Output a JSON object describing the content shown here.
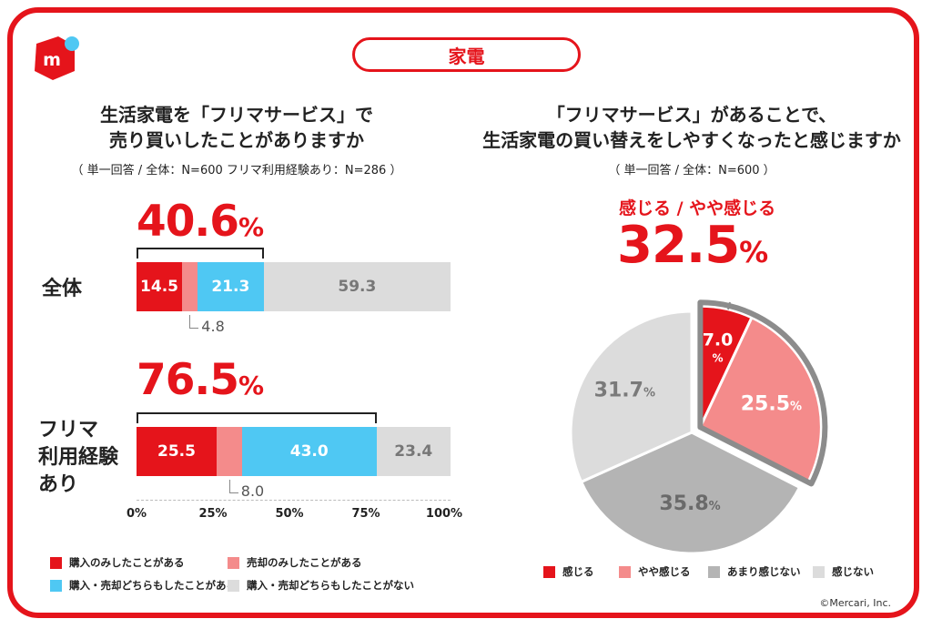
{
  "header": {
    "tag": "家電"
  },
  "left": {
    "title_line1": "生活家電を「フリマサービス」で",
    "title_line2": "売り買いしたことがありますか",
    "note": "（ 単一回答 / 全体：N=600 フリマ利用経験あり：N=286 ）"
  },
  "right": {
    "title_line1": "「フリマサービス」があることで、",
    "title_line2": "生活家電の買い替えをしやすくなったと感じますか",
    "note": "（ 単一回答 / 全体：N=600 ）",
    "highlight_caption": "感じる /  やや感じる",
    "highlight_value": "32.5",
    "highlight_unit": "%"
  },
  "copyright": "©Mercari, Inc.",
  "chart_data": [
    {
      "type": "bar",
      "orientation": "horizontal",
      "stacked": true,
      "categories": [
        "全体",
        "フリマ利用経験あり"
      ],
      "category_lines": [
        [
          "全体"
        ],
        [
          "フリマ",
          "利用経験",
          "あり"
        ]
      ],
      "series": [
        {
          "name": "購入のみしたことがある",
          "values": [
            14.5,
            25.5
          ],
          "color": "#e5141b",
          "text_color": "#ffffff"
        },
        {
          "name": "売却のみしたことがある",
          "values": [
            4.8,
            8.0
          ],
          "color": "#f48b8b",
          "text_color": "#ffffff"
        },
        {
          "name": "購入・売却どちらもしたことがある",
          "values": [
            21.3,
            43.0
          ],
          "color": "#4fc8f3",
          "text_color": "#ffffff"
        },
        {
          "name": "購入・売却どちらもしたことがない",
          "values": [
            59.3,
            23.4
          ],
          "color": "#dcdcdc",
          "text_color": "#777777"
        }
      ],
      "totals": [
        {
          "num": "40.6",
          "unit": "%"
        },
        {
          "num": "76.5",
          "unit": "%"
        }
      ],
      "small_value_labels": [
        "4.8",
        "8.0"
      ],
      "value_labels": [
        [
          "14.5",
          "",
          "21.3",
          "59.3"
        ],
        [
          "25.5",
          "",
          "43.0",
          "23.4"
        ]
      ],
      "xlim": [
        0,
        100
      ],
      "xticks": [
        {
          "value": 0,
          "label": "0%"
        },
        {
          "value": 25,
          "label": "25%"
        },
        {
          "value": 50,
          "label": "50%"
        },
        {
          "value": 75,
          "label": "75%"
        },
        {
          "value": 100,
          "label": "100%"
        }
      ],
      "legend_position": "bottom"
    },
    {
      "type": "pie",
      "start": "top, clockwise",
      "slices": [
        {
          "name": "感じる",
          "value": 7.0,
          "num": "7.0",
          "unit": "%",
          "color": "#e5141b",
          "text_color": "#ffffff",
          "exploded": true
        },
        {
          "name": "やや感じる",
          "value": 25.5,
          "num": "25.5",
          "unit": "%",
          "color": "#f48b8b",
          "text_color": "#ffffff",
          "exploded": true
        },
        {
          "name": "あまり感じない",
          "value": 35.8,
          "num": "35.8",
          "unit": "%",
          "color": "#b4b4b4",
          "text_color": "#6a6a6a",
          "exploded": false
        },
        {
          "name": "感じない",
          "value": 31.7,
          "num": "31.7",
          "unit": "%",
          "color": "#dcdcdc",
          "text_color": "#7a7a7a",
          "exploded": false
        }
      ],
      "legend_position": "bottom"
    }
  ]
}
